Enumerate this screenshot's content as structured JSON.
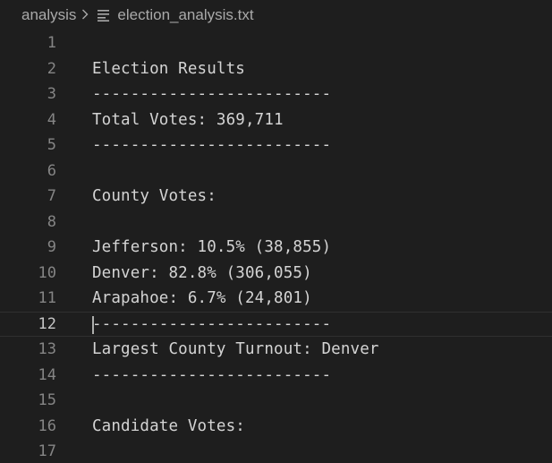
{
  "breadcrumb": {
    "folder": "analysis",
    "separator_icon": "chevron-right-icon",
    "file_icon": "text-file-icon",
    "file": "election_analysis.txt"
  },
  "editor": {
    "current_line": 12,
    "lines": [
      {
        "number": "1",
        "text": ""
      },
      {
        "number": "2",
        "text": "Election Results"
      },
      {
        "number": "3",
        "text": "-------------------------"
      },
      {
        "number": "4",
        "text": "Total Votes: 369,711"
      },
      {
        "number": "5",
        "text": "-------------------------"
      },
      {
        "number": "6",
        "text": ""
      },
      {
        "number": "7",
        "text": "County Votes:"
      },
      {
        "number": "8",
        "text": ""
      },
      {
        "number": "9",
        "text": "Jefferson: 10.5% (38,855)"
      },
      {
        "number": "10",
        "text": "Denver: 82.8% (306,055)"
      },
      {
        "number": "11",
        "text": "Arapahoe: 6.7% (24,801)"
      },
      {
        "number": "12",
        "text": "-------------------------"
      },
      {
        "number": "13",
        "text": "Largest County Turnout: Denver"
      },
      {
        "number": "14",
        "text": "-------------------------"
      },
      {
        "number": "15",
        "text": ""
      },
      {
        "number": "16",
        "text": "Candidate Votes:"
      },
      {
        "number": "17",
        "text": ""
      }
    ]
  }
}
